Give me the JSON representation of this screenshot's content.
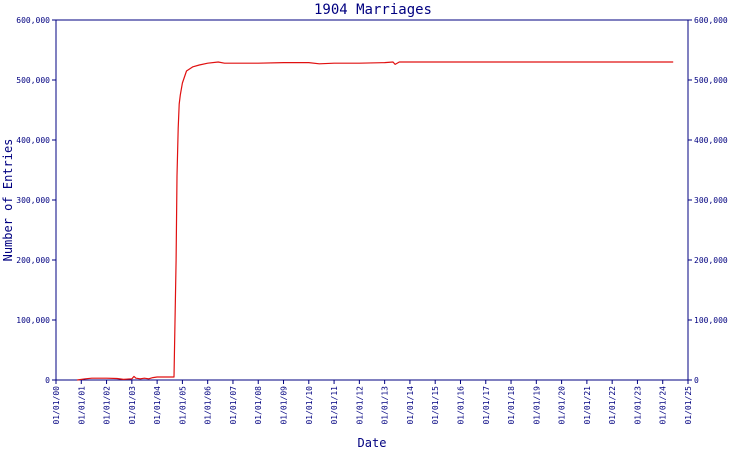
{
  "chart_data": {
    "type": "line",
    "title": "1904 Marriages",
    "xlabel": "Date",
    "ylabel": "Number of Entries",
    "ylim": [
      0,
      600000
    ],
    "yticks": [
      0,
      100000,
      200000,
      300000,
      400000,
      500000,
      600000
    ],
    "ytick_labels": [
      "0",
      "100,000",
      "200,000",
      "300,000",
      "400,000",
      "500,000",
      "600,000"
    ],
    "xlim": [
      "2000-01-01",
      "2025-01-01"
    ],
    "xtick_labels": [
      "01/01/00",
      "01/01/01",
      "01/01/02",
      "01/01/03",
      "01/01/04",
      "01/01/05",
      "01/01/06",
      "01/01/07",
      "01/01/08",
      "01/01/09",
      "01/01/10",
      "01/01/11",
      "01/01/12",
      "01/01/13",
      "01/01/14",
      "01/01/15",
      "01/01/16",
      "01/01/17",
      "01/01/18",
      "01/01/19",
      "01/01/20",
      "01/01/21",
      "01/01/22",
      "01/01/23",
      "01/01/24",
      "01/01/25"
    ],
    "right_axis": true,
    "grid": false,
    "colors": {
      "axis": "#000080",
      "line": "#e01010"
    },
    "series": [
      {
        "x": [
          "2000-11-01",
          "2001-03-01",
          "2001-06-01",
          "2002-01-01",
          "2002-06-01",
          "2002-09-01",
          "2003-01-01",
          "2003-02-01",
          "2003-03-01",
          "2003-05-01",
          "2003-07-01",
          "2003-09-01",
          "2003-11-01",
          "2004-01-01",
          "2004-06-01",
          "2004-09-01",
          "2004-10-01",
          "2004-10-15",
          "2004-11-01",
          "2004-11-15",
          "2004-12-01",
          "2005-01-01",
          "2005-03-01",
          "2005-06-01",
          "2005-09-01",
          "2006-01-01",
          "2006-06-01",
          "2006-09-01",
          "2007-01-01",
          "2008-01-01",
          "2009-01-01",
          "2010-01-01",
          "2010-06-01",
          "2011-01-01",
          "2012-01-01",
          "2013-01-01",
          "2013-05-01",
          "2013-06-01",
          "2013-08-01",
          "2014-01-01",
          "2015-01-01",
          "2016-01-01",
          "2017-01-01",
          "2018-01-01",
          "2019-01-01",
          "2020-01-01",
          "2021-01-01",
          "2022-01-01",
          "2023-01-01",
          "2024-01-01",
          "2024-06-01"
        ],
        "values": [
          0,
          2000,
          3000,
          3000,
          2500,
          1000,
          2000,
          6000,
          3000,
          2000,
          3000,
          2000,
          4000,
          5000,
          5000,
          5000,
          200000,
          340000,
          420000,
          460000,
          475000,
          495000,
          515000,
          522000,
          525000,
          528000,
          530000,
          528000,
          528000,
          528000,
          529000,
          529000,
          527000,
          528000,
          528000,
          529000,
          530000,
          526000,
          530000,
          530000,
          530000,
          530000,
          530000,
          530000,
          530000,
          530000,
          530000,
          530000,
          530000,
          530000,
          530000
        ]
      }
    ]
  }
}
